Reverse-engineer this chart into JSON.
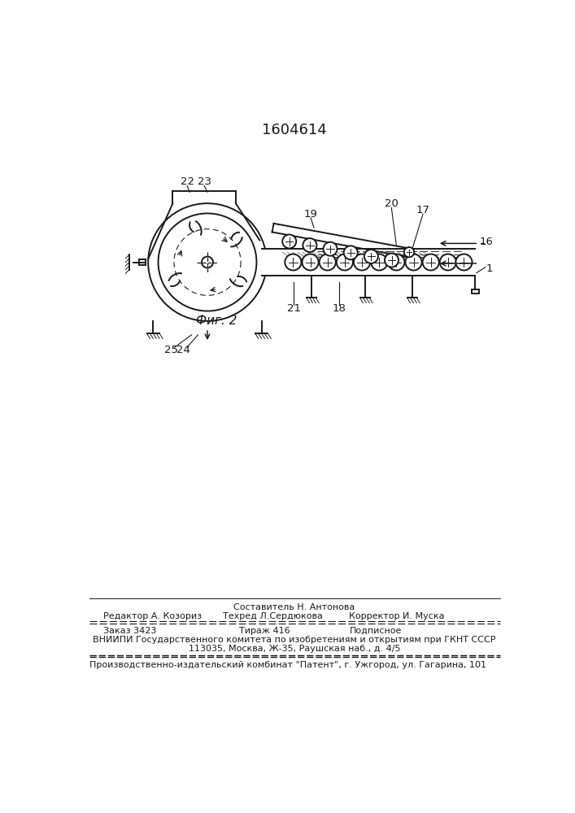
{
  "patent_number": "1604614",
  "fig_label": "Фиг. 2",
  "bg_color": "#ffffff",
  "text_color": "#1a1a1a",
  "footer": {
    "line1_center": "Составитель Н. Антонова",
    "line2_left": "Редактор А. Козориз",
    "line2_center": "Техред Л.Сердюкова",
    "line2_right": "Корректор И. Муска",
    "line3_left": "Заказ 3423",
    "line3_center": "Тираж 416",
    "line3_right": "Подписное",
    "line4": "ВНИИПИ Государственного комитета по изобретениям и открытиям при ГКНТ СССР",
    "line5": "113035, Москва, Ж-35, Раушская наб., д. 4/5",
    "line6": "Производственно-издательский комбинат \"Патент\", г. Ужгород, ул. Гагарина, 101"
  }
}
